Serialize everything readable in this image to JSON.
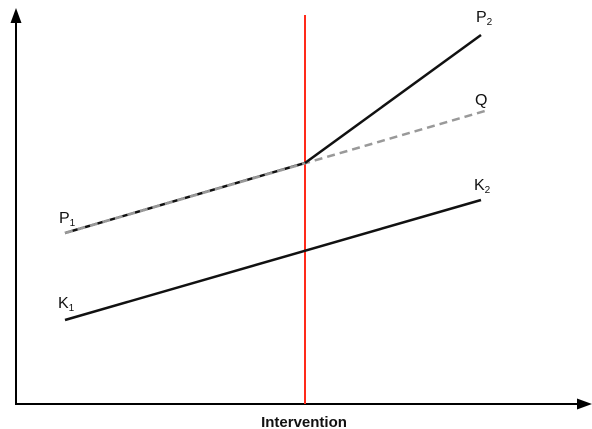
{
  "diagram": {
    "x_axis_label": "Intervention",
    "labels": {
      "p1": {
        "main": "P",
        "sub": "1"
      },
      "p2": {
        "main": "P",
        "sub": "2"
      },
      "q": {
        "main": "Q",
        "sub": ""
      },
      "k1": {
        "main": "K",
        "sub": "1"
      },
      "k2": {
        "main": "K",
        "sub": "2"
      }
    },
    "colors": {
      "axis": "#000000",
      "lines": "#111111",
      "intervention": "#ff2a1a",
      "counterfactual": "#999999"
    }
  }
}
